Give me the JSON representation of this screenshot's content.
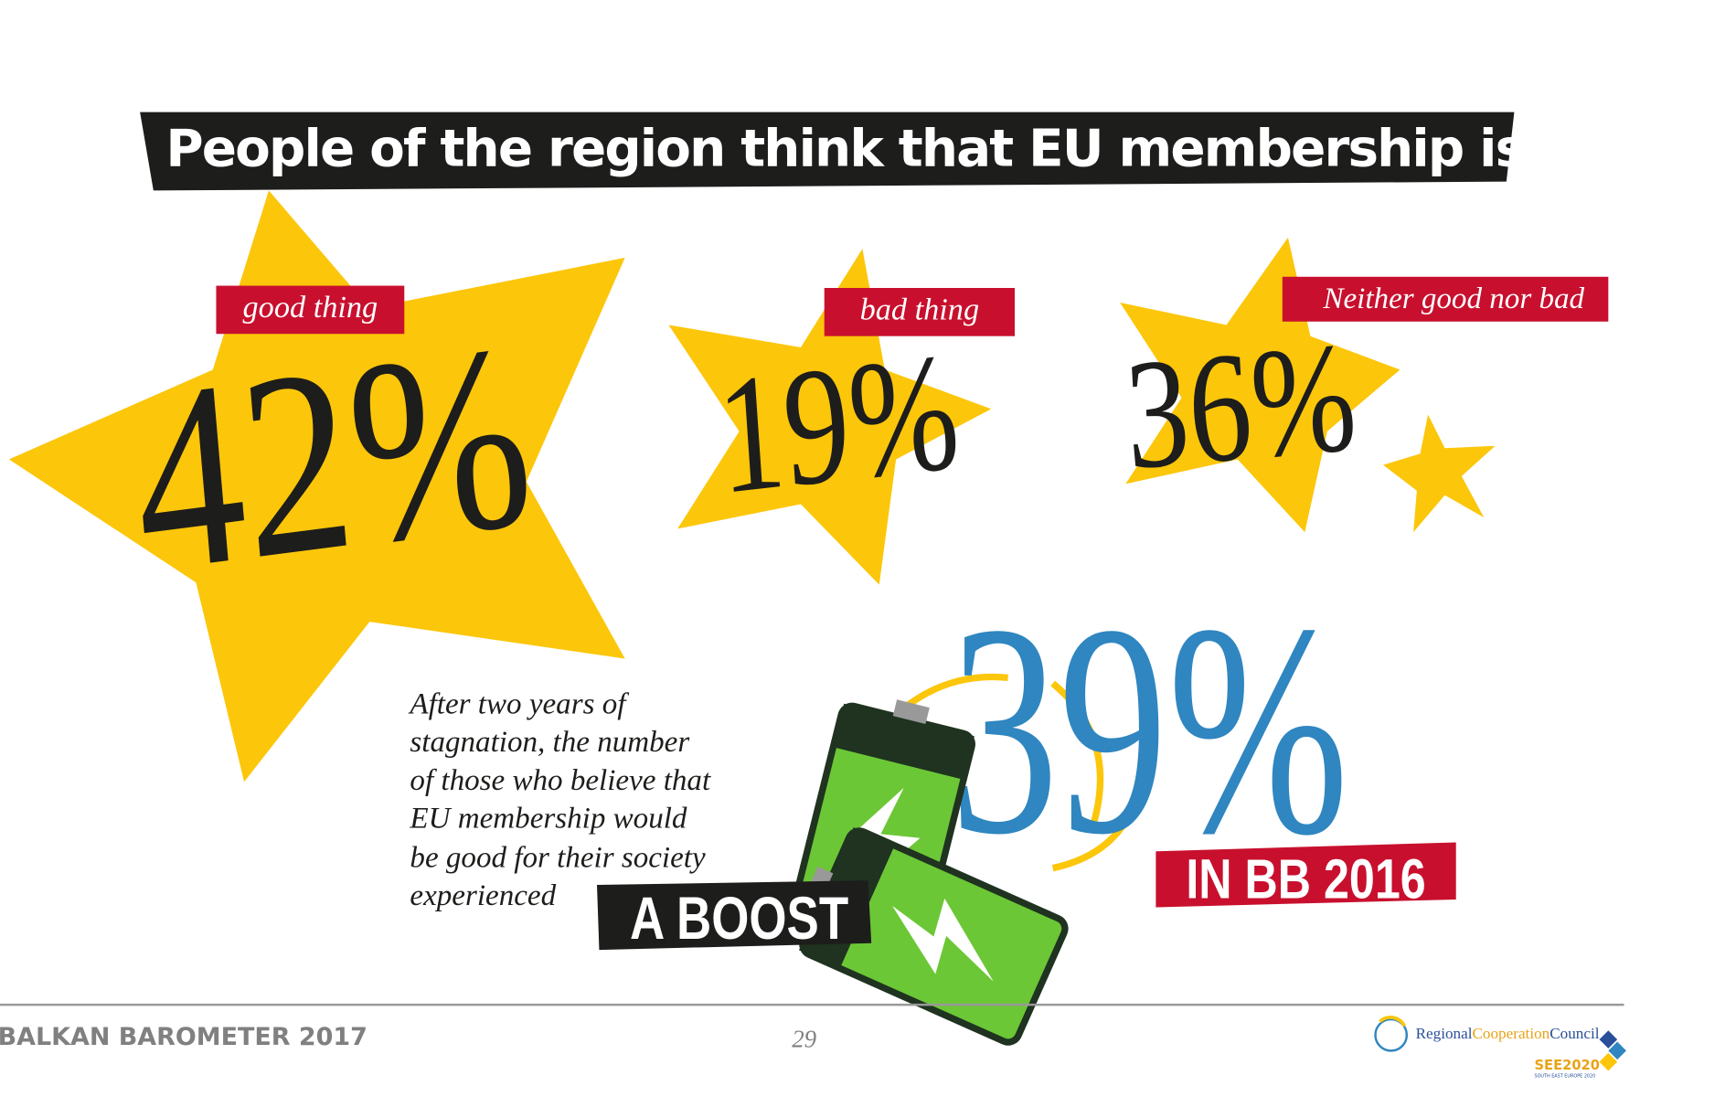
{
  "title": "People of the region think that EU membership is:",
  "items": [
    {
      "label": "good thing",
      "value": "42%"
    },
    {
      "label": "bad thing",
      "value": "19%"
    },
    {
      "label": "Neither good nor bad",
      "value": "36%"
    }
  ],
  "note": {
    "lines": [
      "After two years of",
      "stagnation, the number",
      "of those who believe that",
      "EU membership would",
      "be good for their society",
      "experienced"
    ],
    "highlight": "A BOOST"
  },
  "previous": {
    "value": "39%",
    "label": "IN BB 2016"
  },
  "footer": {
    "publication": "BALKAN BAROMETER 2017",
    "page": "29",
    "logo_parts": [
      "Regional",
      "Cooperation",
      "Council"
    ],
    "logo_sub": "SEE2020",
    "logo_tag": "SOUTH EAST EUROPE 2020"
  }
}
